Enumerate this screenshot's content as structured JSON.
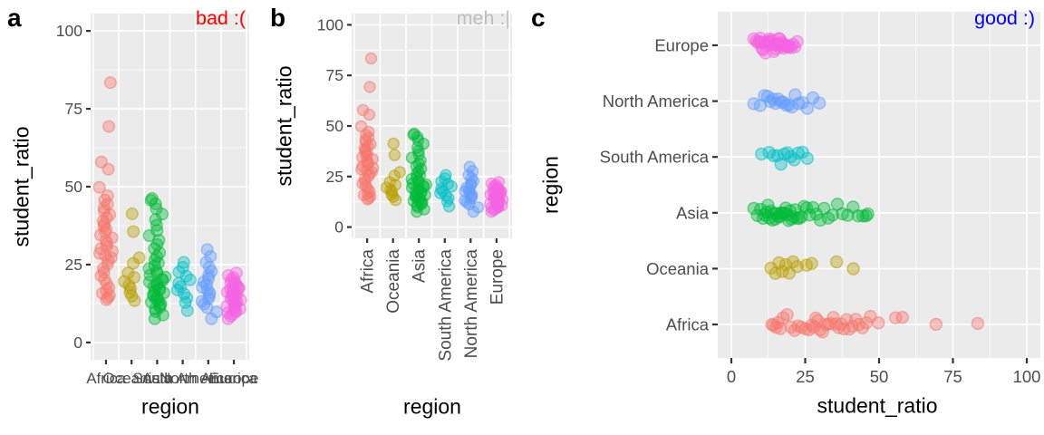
{
  "figure": {
    "background": "#FFFFFF",
    "panel_background": "#EBEBEB",
    "gridline_color": "#FFFFFF",
    "axis_text_color": "#4D4D4D",
    "axis_title_color": "#000000",
    "tick_mark_color": "#333333",
    "panels": [
      {
        "letter": "a",
        "annotation": {
          "text": "bad :(",
          "color": "#FF0000"
        },
        "x_title": "region",
        "y_title": "student_ratio",
        "orientation": "vertical",
        "x_label_style": "horizontal-overlapping"
      },
      {
        "letter": "b",
        "annotation": {
          "text": "meh :|",
          "color": "#BEBEBE"
        },
        "x_title": "region",
        "y_title": "student_ratio",
        "orientation": "vertical",
        "x_label_style": "rotated-90"
      },
      {
        "letter": "c",
        "annotation": {
          "text": "good :)",
          "color": "#0000FF"
        },
        "x_title": "student_ratio",
        "y_title": "region",
        "orientation": "horizontal",
        "x_label_style": "horizontal"
      }
    ]
  },
  "chart_data": {
    "type": "scatter",
    "subtype": "jittered-strip-plot",
    "point_alpha": 0.38,
    "value_axis": {
      "label": "student_ratio",
      "range": [
        0,
        100
      ],
      "ticks": [
        0,
        25,
        50,
        75,
        100
      ],
      "minor_ticks": [
        12.5,
        37.5,
        62.5,
        87.5
      ]
    },
    "category_axis": {
      "label": "region",
      "order_panels_ab": [
        "Africa",
        "Oceania",
        "Asia",
        "South America",
        "North America",
        "Europe"
      ],
      "order_panel_c_top_to_bottom": [
        "Europe",
        "North America",
        "South America",
        "Asia",
        "Oceania",
        "Africa"
      ]
    },
    "series": [
      {
        "name": "Africa",
        "color": "#F8766D",
        "values": [
          13.7,
          14.3,
          15.1,
          15.8,
          16.6,
          17.5,
          18.9,
          20.2,
          21.4,
          22.6,
          23.8,
          25.1,
          26.3,
          27.2,
          27.9,
          28.6,
          29.3,
          30.1,
          30.9,
          31.8,
          32.7,
          33.6,
          34.5,
          35.4,
          36.3,
          37.2,
          38.1,
          39.0,
          40.0,
          41.0,
          42.1,
          43.2,
          44.4,
          45.7,
          47.1,
          49.8,
          55.6,
          57.9,
          69.3,
          83.4
        ]
      },
      {
        "name": "Oceania",
        "color": "#B79F00",
        "values": [
          13.4,
          14.9,
          16.1,
          17.3,
          18.4,
          19.6,
          20.9,
          22.3,
          25.4,
          27.2,
          35.6,
          41.3
        ]
      },
      {
        "name": "Asia",
        "color": "#00BA38",
        "values": [
          7.6,
          8.8,
          9.9,
          10.7,
          11.3,
          11.9,
          12.4,
          12.9,
          13.4,
          13.9,
          14.4,
          14.9,
          15.4,
          15.9,
          16.4,
          16.9,
          17.4,
          17.9,
          18.4,
          18.9,
          19.4,
          19.9,
          20.4,
          21.0,
          21.6,
          22.2,
          22.9,
          23.7,
          24.6,
          25.5,
          26.5,
          27.6,
          28.8,
          30.1,
          31.4,
          32.8,
          34.3,
          35.9,
          37.6,
          39.4,
          41.2,
          42.9,
          44.5,
          45.6,
          46.2
        ]
      },
      {
        "name": "South America",
        "color": "#00BFC4",
        "values": [
          10.2,
          12.8,
          14.3,
          15.6,
          16.8,
          17.9,
          19.0,
          20.1,
          21.3,
          22.6,
          24.1,
          25.7
        ]
      },
      {
        "name": "North America",
        "color": "#619CFF",
        "values": [
          7.6,
          9.8,
          11.2,
          12.3,
          13.2,
          14.1,
          15.0,
          15.9,
          16.8,
          17.7,
          18.6,
          19.5,
          20.5,
          21.6,
          22.8,
          24.1,
          25.7,
          27.6,
          29.8
        ]
      },
      {
        "name": "Europe",
        "color": "#F564E3",
        "values": [
          7.6,
          8.4,
          9.0,
          9.5,
          9.8,
          10.0,
          10.4,
          10.8,
          11.2,
          11.6,
          12.0,
          12.4,
          12.8,
          13.0,
          13.2,
          13.6,
          14.0,
          14.4,
          14.8,
          15.0,
          15.2,
          15.6,
          16.0,
          16.2,
          16.4,
          16.8,
          17.0,
          17.2,
          17.6,
          18.0,
          18.4,
          18.8,
          19.2,
          19.7,
          20.2,
          20.8,
          21.5,
          22.3
        ]
      }
    ]
  }
}
